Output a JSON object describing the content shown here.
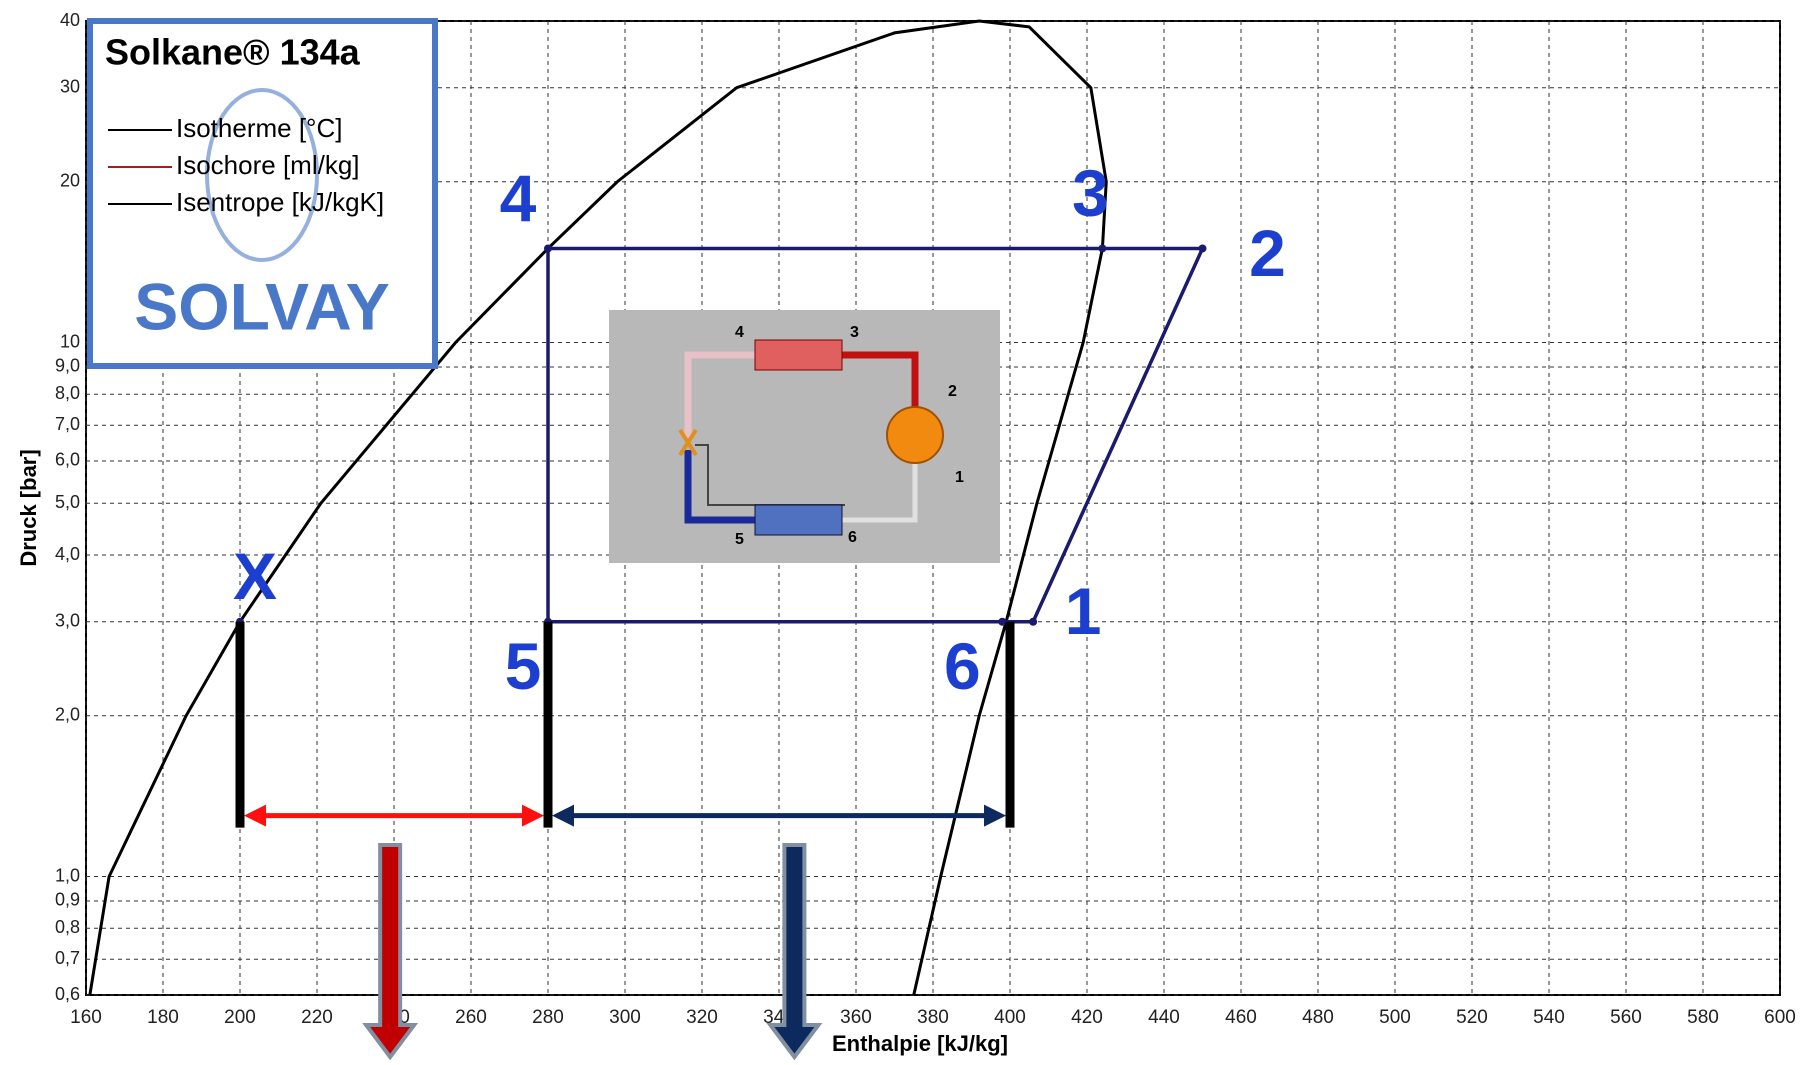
{
  "chart_data": {
    "type": "line",
    "xlabel": "Enthalpie [kJ/kg]",
    "ylabel": "Druck [bar]",
    "xlim": [
      160,
      600
    ],
    "xticks": [
      160,
      180,
      200,
      220,
      240,
      260,
      280,
      300,
      320,
      340,
      360,
      380,
      400,
      420,
      440,
      460,
      480,
      500,
      520,
      540,
      560,
      580,
      600
    ],
    "ylim": [
      0.6,
      40
    ],
    "log_y": true,
    "yticks": [
      40,
      30,
      20,
      10,
      {
        "value": 9,
        "label": "9,0"
      },
      {
        "value": 8,
        "label": "8,0"
      },
      {
        "value": 7,
        "label": "7,0"
      },
      {
        "value": 6,
        "label": "6,0"
      },
      {
        "value": 5,
        "label": "5,0"
      },
      {
        "value": 4,
        "label": "4,0"
      },
      {
        "value": 3,
        "label": "3,0"
      },
      {
        "value": 2,
        "label": "2,0"
      },
      {
        "value": 1,
        "label": "1,0"
      },
      {
        "value": 0.9,
        "label": "0,9"
      },
      {
        "value": 0.8,
        "label": "0,8"
      },
      {
        "value": 0.7,
        "label": "0,7"
      },
      {
        "value": 0.6,
        "label": "0,6"
      }
    ],
    "grid": true,
    "series": [
      {
        "color": "#000000",
        "x": [
          161,
          166,
          186,
          200,
          221,
          256,
          280,
          298,
          329,
          370,
          392,
          405,
          421,
          425,
          424,
          419,
          407,
          399,
          392,
          382,
          375
        ],
        "values": [
          0.6,
          1,
          2,
          3,
          5,
          10,
          15,
          20,
          30,
          38,
          40,
          39,
          30,
          20,
          15,
          10,
          5,
          3,
          2,
          1,
          0.6
        ]
      },
      {
        "color": "#1a1a6e",
        "x": [
          406,
          450,
          280,
          280,
          406
        ],
        "values": [
          3,
          15,
          15,
          3,
          3
        ]
      }
    ],
    "points": [
      {
        "label": "1",
        "x": 406,
        "y": 3
      },
      {
        "label": "2",
        "x": 450,
        "y": 15
      },
      {
        "label": "3",
        "x": 424,
        "y": 15
      },
      {
        "label": "4",
        "x": 280,
        "y": 15
      },
      {
        "label": "5",
        "x": 280,
        "y": 3
      },
      {
        "label": "6",
        "x": 398,
        "y": 3
      },
      {
        "label": "X",
        "x": 200,
        "y": 3
      }
    ],
    "spans": [
      {
        "x": [
          200,
          280
        ],
        "y": 1.3,
        "color": "#ff1010"
      },
      {
        "x": [
          280,
          400
        ],
        "y": 1.3,
        "color": "#0d2a5e"
      }
    ],
    "down_arrows": [
      {
        "x": 239,
        "color": "#c00000"
      },
      {
        "x": 344,
        "color": "#0d2a5e"
      }
    ],
    "legend": {
      "title": "Solkane® 134a",
      "items": [
        {
          "name": "Isotherme [°C]",
          "color": "#000000"
        },
        {
          "name": "Isochore [ml/kg]",
          "color": "#a02020"
        },
        {
          "name": "Isentrope [kJ/kgK]",
          "color": "#000000"
        }
      ],
      "brand": "SOLVAY"
    }
  },
  "schematic": {
    "labels": [
      "1",
      "2",
      "3",
      "4",
      "5",
      "6"
    ]
  }
}
